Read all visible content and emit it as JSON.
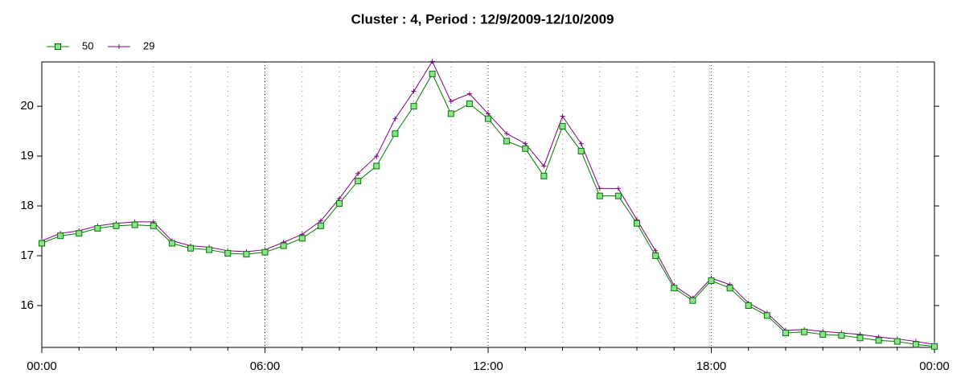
{
  "chart_data": {
    "type": "line",
    "title": "Cluster : 4, Period : 12/9/2009-12/10/2009",
    "x": [
      0,
      0.5,
      1,
      1.5,
      2,
      2.5,
      3,
      3.5,
      4,
      4.5,
      5,
      5.5,
      6,
      6.5,
      7,
      7.5,
      8,
      8.5,
      9,
      9.5,
      10,
      10.5,
      11,
      11.5,
      12,
      12.5,
      13,
      13.5,
      14,
      14.5,
      15,
      15.5,
      16,
      16.5,
      17,
      17.5,
      18,
      18.5,
      19,
      19.5,
      20,
      20.5,
      21,
      21.5,
      22,
      22.5,
      23,
      23.5,
      24
    ],
    "series": [
      {
        "name": "50",
        "color": "#007a00",
        "marker": "square",
        "marker_fill": "#8fe08f",
        "values": [
          17.25,
          17.4,
          17.45,
          17.55,
          17.6,
          17.62,
          17.6,
          17.25,
          17.15,
          17.12,
          17.05,
          17.03,
          17.07,
          17.2,
          17.35,
          17.6,
          18.05,
          18.5,
          18.8,
          19.45,
          20.0,
          20.65,
          19.85,
          20.05,
          19.75,
          19.3,
          19.15,
          18.6,
          19.6,
          19.1,
          18.2,
          18.2,
          17.65,
          17.0,
          16.35,
          16.1,
          16.5,
          16.35,
          16.0,
          15.8,
          15.45,
          15.47,
          15.42,
          15.4,
          15.35,
          15.3,
          15.28,
          15.22,
          15.18
        ]
      },
      {
        "name": "29",
        "color": "#800080",
        "marker": "plus",
        "values": [
          17.3,
          17.45,
          17.5,
          17.6,
          17.65,
          17.68,
          17.68,
          17.3,
          17.2,
          17.17,
          17.1,
          17.08,
          17.12,
          17.27,
          17.43,
          17.7,
          18.15,
          18.65,
          19.0,
          19.75,
          20.3,
          20.9,
          20.1,
          20.25,
          19.85,
          19.45,
          19.25,
          18.8,
          19.8,
          19.25,
          18.35,
          18.35,
          17.72,
          17.1,
          16.4,
          16.15,
          16.55,
          16.42,
          16.05,
          15.85,
          15.5,
          15.52,
          15.48,
          15.45,
          15.42,
          15.37,
          15.33,
          15.28,
          15.22
        ]
      }
    ],
    "xlim": [
      0,
      24
    ],
    "xticks": [
      {
        "value": 0,
        "label": "00:00"
      },
      {
        "value": 6,
        "label": "06:00"
      },
      {
        "value": 12,
        "label": "12:00"
      },
      {
        "value": 18,
        "label": "18:00"
      },
      {
        "value": 24,
        "label": "00:00"
      }
    ],
    "xminorticks": [
      1,
      2,
      3,
      4,
      5,
      7,
      8,
      9,
      10,
      11,
      13,
      14,
      15,
      16,
      17,
      19,
      20,
      21,
      22,
      23
    ],
    "ylim": [
      15.16,
      20.89
    ],
    "yticks": [
      16,
      17,
      18,
      19,
      20
    ],
    "grid": true,
    "legend": "top-left"
  }
}
